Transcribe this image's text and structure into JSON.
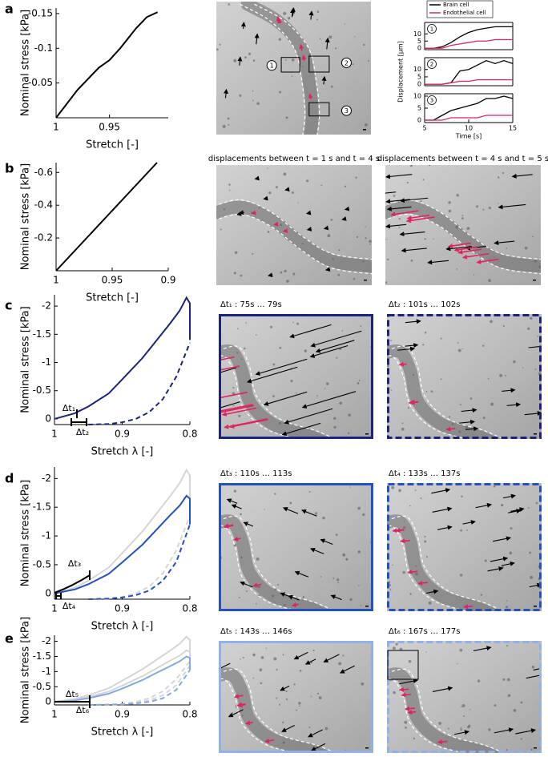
{
  "figure": {
    "panel_labels": [
      "a",
      "b",
      "c",
      "d",
      "e"
    ]
  },
  "images": [
    {
      "markers": [
        "1",
        "2",
        "3"
      ]
    },
    {
      "caption": "displacements between  t = 1 s and t = 4 s"
    },
    {
      "caption": "displacements between  t = 4 s and t = 5 s"
    },
    {
      "caption": "Δt₁ : 75s … 79s"
    },
    {
      "caption": "Δt₂ : 101s … 102s"
    },
    {
      "caption": "Δt₃ : 110s … 113s"
    },
    {
      "caption": "Δt₄ : 133s … 137s"
    },
    {
      "caption": "Δt₅ : 143s … 146s"
    },
    {
      "caption": "Δt₆ : 167s … 177s"
    }
  ],
  "chart_data": [
    {
      "type": "line",
      "xlabel": "Stretch [-]",
      "ylabel": "Nominal stress [kPa]",
      "xlim": [
        1,
        0.895
      ],
      "ylim": [
        0,
        -0.158
      ],
      "xticks": [
        1,
        0.95
      ],
      "yticks": [
        -0.05,
        -0.1,
        -0.15
      ],
      "series": [
        {
          "color": "#000000",
          "x": [
            1,
            0.98,
            0.96,
            0.95,
            0.94,
            0.925,
            0.915,
            0.905
          ],
          "values": [
            0,
            -0.04,
            -0.072,
            -0.083,
            -0.1,
            -0.129,
            -0.145,
            -0.152
          ]
        }
      ]
    },
    {
      "type": "line",
      "annotation": "1",
      "x": [
        5,
        6,
        7,
        8,
        9,
        10,
        11,
        12,
        13,
        14,
        15
      ],
      "xlim": [
        5,
        15
      ],
      "ylim": [
        -1,
        18
      ],
      "yticks": [
        0,
        5,
        10
      ],
      "series": [
        {
          "name": "Brain cell",
          "color": "#000000",
          "values": [
            0,
            0,
            1,
            4,
            8,
            11,
            13,
            14,
            15,
            15,
            15
          ]
        },
        {
          "name": "Endothelial cell",
          "color": "#e0245e",
          "values": [
            0,
            0,
            0,
            2,
            3,
            4,
            5,
            5,
            6,
            6,
            6
          ]
        }
      ]
    },
    {
      "type": "line",
      "annotation": "2",
      "ylabel": "Displacement [µm]",
      "x": [
        5,
        6,
        7,
        8,
        9,
        10,
        11,
        12,
        13,
        14,
        15
      ],
      "xlim": [
        5,
        15
      ],
      "ylim": [
        -1,
        18
      ],
      "yticks": [
        0,
        5,
        10
      ],
      "series": [
        {
          "color": "#000000",
          "values": [
            0,
            0,
            0,
            1,
            9,
            10,
            13,
            16,
            14,
            16,
            14
          ]
        },
        {
          "color": "#e0245e",
          "values": [
            0,
            0,
            0,
            1,
            2,
            2,
            3,
            3,
            3,
            3,
            3
          ]
        }
      ]
    },
    {
      "type": "line",
      "annotation": "3",
      "xlabel": "Time [s]",
      "x": [
        5,
        6,
        7,
        8,
        9,
        10,
        11,
        12,
        13,
        14,
        15
      ],
      "xlim": [
        5,
        15
      ],
      "ylim": [
        -1,
        11
      ],
      "xticks": [
        5,
        10,
        15
      ],
      "yticks": [
        0,
        5,
        10
      ],
      "series": [
        {
          "color": "#000000",
          "values": [
            0,
            0,
            2,
            4,
            5,
            6,
            7,
            9,
            9,
            10,
            9
          ]
        },
        {
          "color": "#e0245e",
          "values": [
            0,
            0,
            0,
            1,
            1,
            1,
            1,
            2,
            2,
            2,
            2
          ]
        }
      ]
    },
    {
      "type": "line",
      "xlabel": "Stretch [-]",
      "ylabel": "Nominal stress [kPa]",
      "xlim": [
        1,
        0.9
      ],
      "ylim": [
        0,
        -0.66
      ],
      "xticks": [
        1,
        0.95,
        0.9
      ],
      "yticks": [
        -0.2,
        -0.4,
        -0.6
      ],
      "series": [
        {
          "color": "#000000",
          "x": [
            1,
            0.985,
            0.97,
            0.955,
            0.94,
            0.925,
            0.91
          ],
          "values": [
            0,
            -0.11,
            -0.22,
            -0.33,
            -0.44,
            -0.55,
            -0.66
          ]
        }
      ]
    },
    {
      "type": "line",
      "xlabel": "Stretch λ [-]",
      "ylabel": "Nominal stress [kPa]",
      "xlim": [
        1,
        0.8
      ],
      "ylim": [
        0.1,
        -2.2
      ],
      "xticks": [
        1,
        0.9,
        0.8
      ],
      "yticks": [
        0,
        -0.5,
        -1,
        -1.5,
        -2
      ],
      "annotations": [
        "Δt₁",
        "Δt₂"
      ],
      "series": [
        {
          "color": "#1b237d",
          "x": [
            1,
            0.97,
            0.95,
            0.92,
            0.9,
            0.87,
            0.85,
            0.83,
            0.815,
            0.805,
            0.8,
            0.8
          ],
          "values": [
            0,
            -0.1,
            -0.22,
            -0.45,
            -0.7,
            -1.08,
            -1.38,
            -1.68,
            -1.92,
            -2.15,
            -2.05,
            -1.4
          ]
        },
        {
          "color": "#1b237d",
          "dash": true,
          "x": [
            0.95,
            0.92,
            0.9,
            0.88,
            0.86,
            0.84,
            0.82,
            0.8
          ],
          "values": [
            0.1,
            0.09,
            0.06,
            0,
            -0.12,
            -0.35,
            -0.75,
            -1.35
          ]
        }
      ]
    },
    {
      "type": "line",
      "xlabel": "Stretch λ [-]",
      "ylabel": "Nominal stress [kPa]",
      "xlim": [
        1,
        0.8
      ],
      "ylim": [
        0.1,
        -2.2
      ],
      "xticks": [
        1,
        0.9,
        0.8
      ],
      "yticks": [
        0,
        -0.5,
        -1,
        -1.5,
        -2
      ],
      "annotations": [
        "Δt₃",
        "Δt₄"
      ],
      "series": [
        {
          "color": "#d6d6d6",
          "x": [
            1,
            0.97,
            0.95,
            0.92,
            0.9,
            0.87,
            0.85,
            0.83,
            0.815,
            0.805,
            0.8,
            0.8
          ],
          "values": [
            0,
            -0.1,
            -0.22,
            -0.45,
            -0.7,
            -1.08,
            -1.38,
            -1.68,
            -1.92,
            -2.15,
            -2.05,
            -1.4
          ]
        },
        {
          "color": "#d6d6d6",
          "dash": true,
          "x": [
            0.95,
            0.92,
            0.9,
            0.88,
            0.86,
            0.84,
            0.82,
            0.8
          ],
          "values": [
            0.1,
            0.09,
            0.06,
            0,
            -0.12,
            -0.35,
            -0.75,
            -1.35
          ]
        },
        {
          "color": "#2350c3",
          "x": [
            1,
            0.97,
            0.95,
            0.92,
            0.9,
            0.87,
            0.85,
            0.83,
            0.815,
            0.805,
            0.8,
            0.8
          ],
          "values": [
            0,
            -0.07,
            -0.16,
            -0.34,
            -0.54,
            -0.85,
            -1.1,
            -1.35,
            -1.53,
            -1.7,
            -1.65,
            -1.2
          ]
        },
        {
          "color": "#2350c3",
          "dash": true,
          "x": [
            0.95,
            0.92,
            0.9,
            0.88,
            0.86,
            0.84,
            0.82,
            0.8
          ],
          "values": [
            0.1,
            0.09,
            0.07,
            0.03,
            -0.05,
            -0.22,
            -0.55,
            -1.2
          ]
        }
      ]
    },
    {
      "type": "line",
      "xlabel": "Stretch λ [-]",
      "ylabel": "Nominal stress [kPa]",
      "xlim": [
        1,
        0.8
      ],
      "ylim": [
        0.1,
        -2.2
      ],
      "xticks": [
        1,
        0.9,
        0.8
      ],
      "yticks": [
        0,
        -0.5,
        -1,
        -1.5,
        -2
      ],
      "annotations": [
        "Δt₅",
        "Δt₆"
      ],
      "series": [
        {
          "color": "#d6d6d6",
          "x": [
            1,
            0.97,
            0.95,
            0.92,
            0.9,
            0.87,
            0.85,
            0.83,
            0.815,
            0.805,
            0.8,
            0.8
          ],
          "values": [
            0,
            -0.1,
            -0.22,
            -0.45,
            -0.7,
            -1.08,
            -1.38,
            -1.68,
            -1.92,
            -2.15,
            -2.05,
            -1.4
          ]
        },
        {
          "color": "#d6d6d6",
          "dash": true,
          "x": [
            0.95,
            0.92,
            0.9,
            0.88,
            0.86,
            0.84,
            0.82,
            0.8
          ],
          "values": [
            0.1,
            0.09,
            0.06,
            0,
            -0.12,
            -0.35,
            -0.75,
            -1.35
          ]
        },
        {
          "color": "#d6d6d6",
          "x": [
            1,
            0.97,
            0.95,
            0.92,
            0.9,
            0.87,
            0.85,
            0.83,
            0.815,
            0.805,
            0.8,
            0.8
          ],
          "values": [
            0,
            -0.07,
            -0.16,
            -0.34,
            -0.54,
            -0.85,
            -1.1,
            -1.35,
            -1.53,
            -1.7,
            -1.65,
            -1.2
          ]
        },
        {
          "color": "#d6d6d6",
          "dash": true,
          "x": [
            0.95,
            0.92,
            0.9,
            0.88,
            0.86,
            0.84,
            0.82,
            0.8
          ],
          "values": [
            0.1,
            0.09,
            0.07,
            0.03,
            -0.05,
            -0.22,
            -0.55,
            -1.2
          ]
        },
        {
          "color": "#80a8e8",
          "x": [
            1,
            0.97,
            0.95,
            0.92,
            0.9,
            0.87,
            0.85,
            0.83,
            0.815,
            0.805,
            0.8,
            0.8
          ],
          "values": [
            0,
            -0.05,
            -0.12,
            -0.27,
            -0.44,
            -0.72,
            -0.95,
            -1.17,
            -1.34,
            -1.5,
            -1.45,
            -1.05
          ]
        },
        {
          "color": "#80a8e8",
          "dash": true,
          "x": [
            0.95,
            0.92,
            0.9,
            0.88,
            0.86,
            0.84,
            0.82,
            0.8
          ],
          "values": [
            0.1,
            0.09,
            0.08,
            0.05,
            0,
            -0.12,
            -0.4,
            -1.05
          ]
        }
      ]
    }
  ]
}
